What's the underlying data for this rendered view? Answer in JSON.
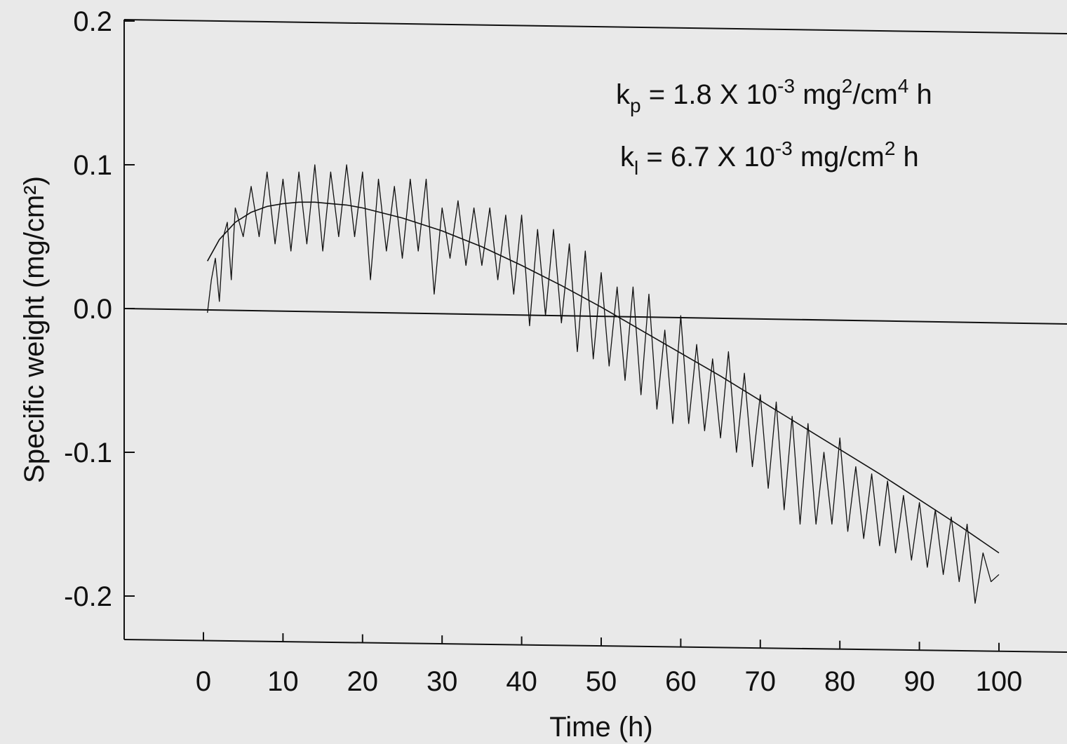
{
  "chart_data": {
    "type": "line",
    "xlabel": "Time (h)",
    "ylabel": "Specific weight (mg/cm²)",
    "xlim": [
      0,
      100
    ],
    "ylim": [
      -0.2,
      0.2
    ],
    "x_ticks": [
      0,
      10,
      20,
      30,
      40,
      50,
      60,
      70,
      80,
      90,
      100
    ],
    "y_ticks": [
      0.2,
      0.1,
      0.0,
      -0.1,
      -0.2
    ],
    "x_tick_labels": [
      "0",
      "10",
      "20",
      "30",
      "40",
      "50",
      "60",
      "70",
      "80",
      "90",
      "100"
    ],
    "y_tick_labels": [
      "0.2",
      "0.1",
      "0.0",
      "-0.1",
      "-0.2"
    ],
    "grid": false,
    "reference_line_y": 0.0,
    "annotations": {
      "kp": {
        "symbol": "k",
        "sub": "p",
        "text": " = 1.8 X 10",
        "exp": "-3",
        "unit": " mg",
        "unit_exp": "2",
        "unit_rest": "/cm",
        "unit_exp2": "4",
        "unit_tail": " h"
      },
      "kl": {
        "symbol": "k",
        "sub": "l",
        "text": " = 6.7 X 10",
        "exp": "-3",
        "unit": " mg/cm",
        "unit_exp": "2",
        "unit_tail": " h"
      }
    },
    "series": [
      {
        "style": "measured (noisy)",
        "x": [
          0.5,
          1,
          1.5,
          2,
          2.5,
          3,
          3.5,
          4,
          5,
          6,
          7,
          8,
          9,
          10,
          11,
          12,
          13,
          14,
          15,
          16,
          17,
          18,
          19,
          20,
          21,
          22,
          23,
          24,
          25,
          26,
          27,
          28,
          29,
          30,
          31,
          32,
          33,
          34,
          35,
          36,
          37,
          38,
          39,
          40,
          41,
          42,
          43,
          44,
          45,
          46,
          47,
          48,
          49,
          50,
          51,
          52,
          53,
          54,
          55,
          56,
          57,
          58,
          59,
          60,
          61,
          62,
          63,
          64,
          65,
          66,
          67,
          68,
          69,
          70,
          71,
          72,
          73,
          74,
          75,
          76,
          77,
          78,
          79,
          80,
          81,
          82,
          83,
          84,
          85,
          86,
          87,
          88,
          89,
          90,
          91,
          92,
          93,
          94,
          95,
          96,
          97,
          98,
          99,
          100
        ],
        "values": [
          -0.003,
          0.02,
          0.035,
          0.005,
          0.05,
          0.06,
          0.02,
          0.07,
          0.05,
          0.085,
          0.05,
          0.095,
          0.045,
          0.09,
          0.04,
          0.095,
          0.045,
          0.1,
          0.04,
          0.095,
          0.05,
          0.1,
          0.05,
          0.095,
          0.02,
          0.09,
          0.04,
          0.085,
          0.035,
          0.09,
          0.04,
          0.09,
          0.01,
          0.07,
          0.035,
          0.075,
          0.03,
          0.07,
          0.03,
          0.07,
          0.02,
          0.065,
          0.01,
          0.065,
          -0.012,
          0.055,
          -0.005,
          0.055,
          -0.01,
          0.045,
          -0.03,
          0.04,
          -0.035,
          0.025,
          -0.04,
          0.015,
          -0.05,
          0.015,
          -0.06,
          0.01,
          -0.07,
          -0.015,
          -0.08,
          -0.005,
          -0.08,
          -0.025,
          -0.085,
          -0.035,
          -0.09,
          -0.03,
          -0.1,
          -0.045,
          -0.11,
          -0.06,
          -0.125,
          -0.065,
          -0.14,
          -0.075,
          -0.15,
          -0.08,
          -0.15,
          -0.1,
          -0.15,
          -0.09,
          -0.155,
          -0.11,
          -0.16,
          -0.115,
          -0.165,
          -0.12,
          -0.17,
          -0.13,
          -0.175,
          -0.135,
          -0.18,
          -0.14,
          -0.185,
          -0.145,
          -0.19,
          -0.15,
          -0.205,
          -0.17,
          -0.19,
          -0.185
        ]
      },
      {
        "style": "fitted curve",
        "x": [
          0.5,
          2,
          4,
          6,
          8,
          10,
          12,
          14,
          16,
          18,
          20,
          25,
          30,
          35,
          40,
          45,
          50,
          55,
          60,
          65,
          70,
          75,
          80,
          85,
          90,
          95,
          100
        ],
        "values": [
          0.033,
          0.048,
          0.06,
          0.067,
          0.071,
          0.073,
          0.074,
          0.074,
          0.073,
          0.072,
          0.07,
          0.063,
          0.054,
          0.043,
          0.03,
          0.016,
          0.001,
          -0.015,
          -0.031,
          -0.047,
          -0.064,
          -0.081,
          -0.098,
          -0.115,
          -0.133,
          -0.151,
          -0.17
        ]
      }
    ]
  }
}
